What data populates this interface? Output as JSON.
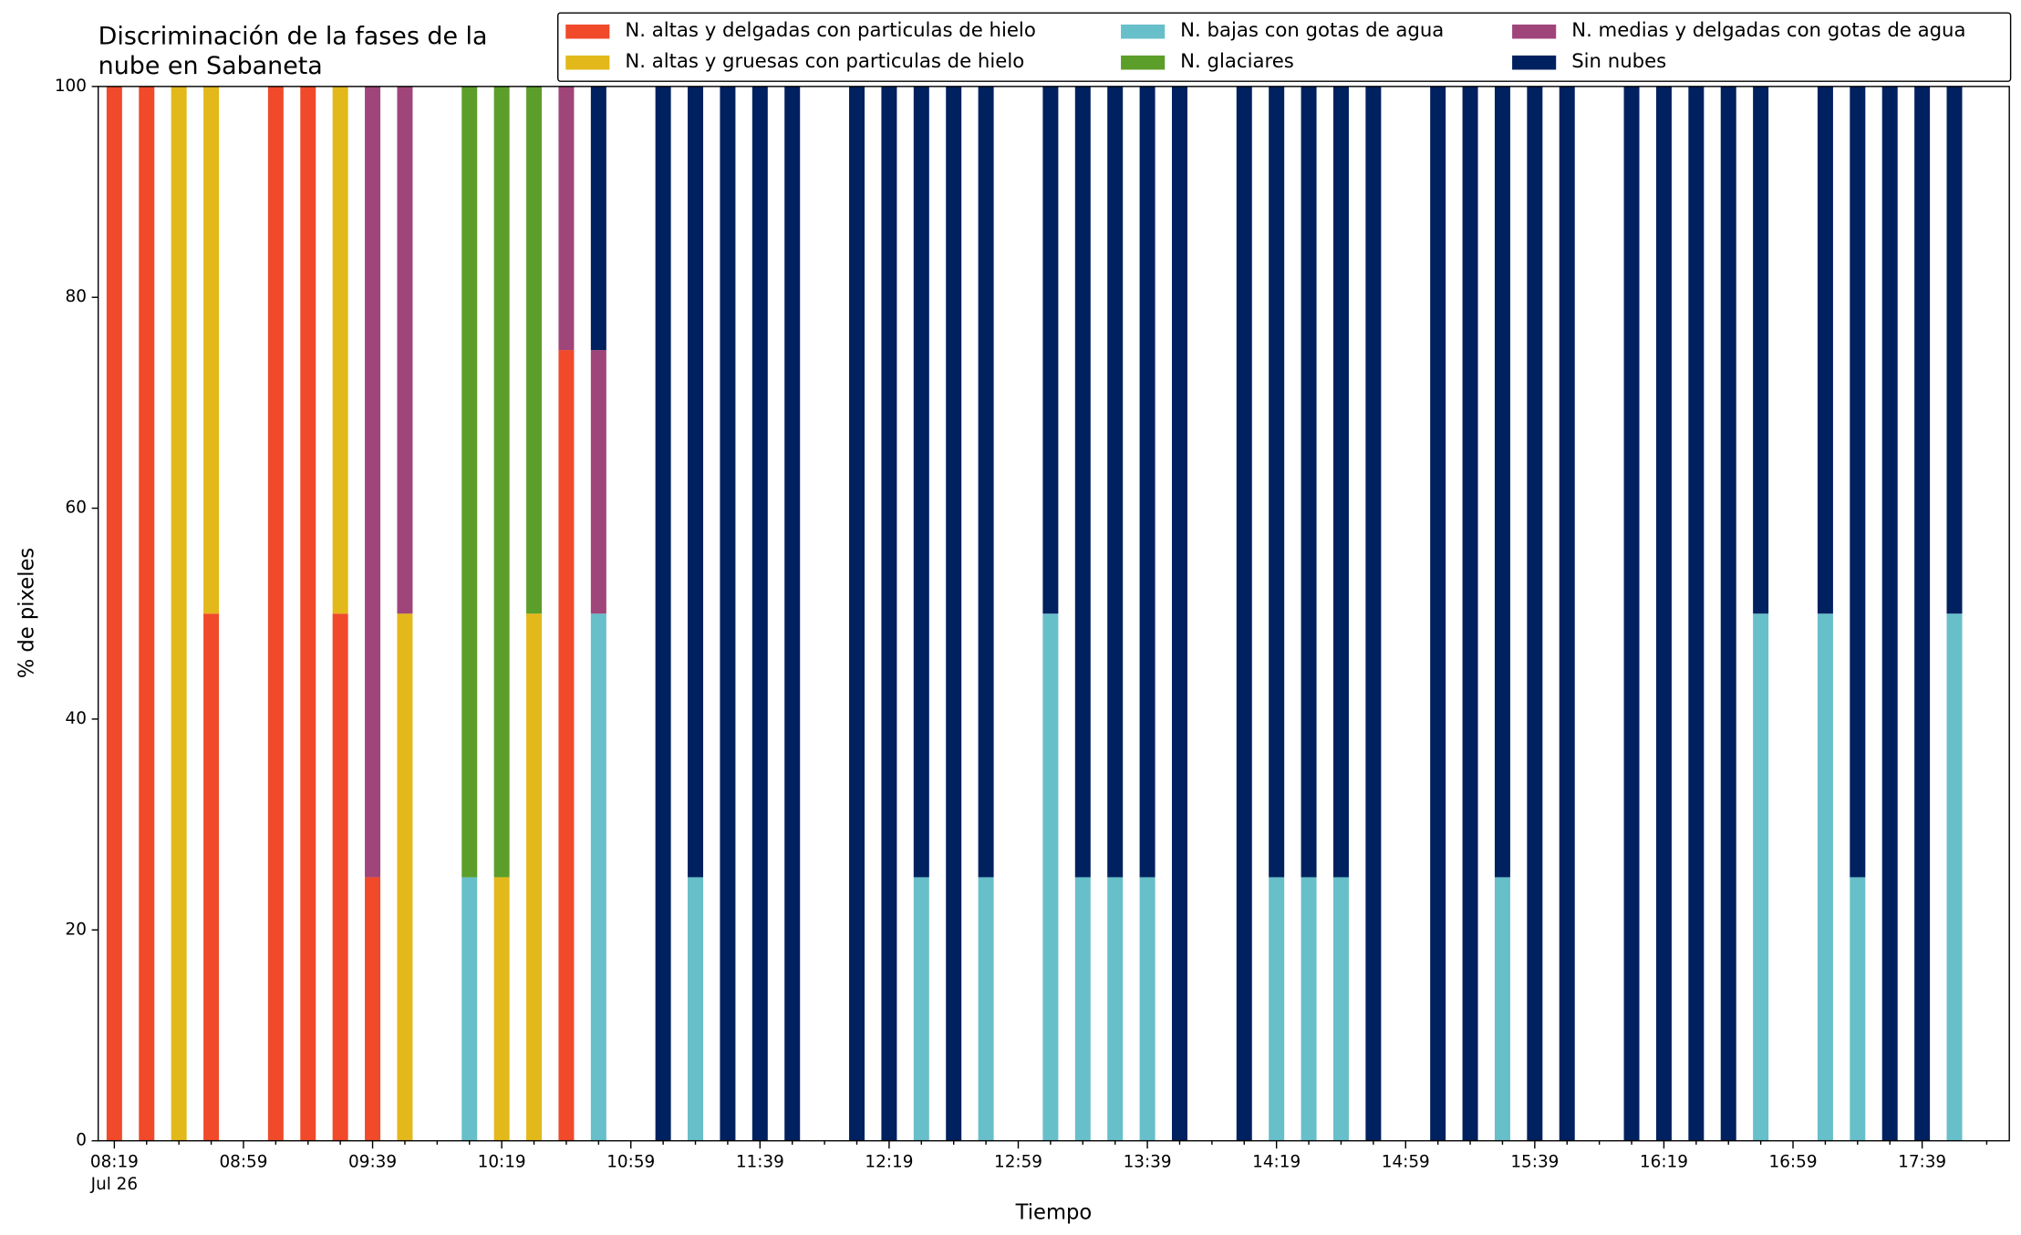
{
  "chart_data": {
    "type": "stacked_bar",
    "title": [
      "Discriminación de la fases de la",
      "nube en Sabaneta"
    ],
    "xlabel": "Tiempo",
    "ylabel": "% de pixeles",
    "x": [
      "08:19",
      "08:29",
      "08:39",
      "08:49",
      "09:09",
      "09:19",
      "09:29",
      "09:39",
      "09:49",
      "10:09",
      "10:19",
      "10:29",
      "10:39",
      "10:49",
      "11:09",
      "11:19",
      "11:29",
      "11:39",
      "11:49",
      "12:09",
      "12:19",
      "12:29",
      "12:39",
      "12:49",
      "13:09",
      "13:19",
      "13:29",
      "13:39",
      "13:49",
      "14:09",
      "14:19",
      "14:29",
      "14:39",
      "14:49",
      "15:09",
      "15:19",
      "15:29",
      "15:39",
      "15:49",
      "16:09",
      "16:19",
      "16:29",
      "16:39",
      "16:49",
      "17:09",
      "17:19",
      "17:29",
      "17:39",
      "17:49"
    ],
    "xlim": [
      "08:14",
      "18:06"
    ],
    "xticks": [
      "08:19",
      "08:59",
      "09:39",
      "10:19",
      "10:59",
      "11:39",
      "12:19",
      "12:59",
      "13:39",
      "14:19",
      "14:59",
      "15:39",
      "16:19",
      "16:59",
      "17:39"
    ],
    "xtick_sublabel": "Jul 26",
    "ylim": [
      0,
      100
    ],
    "yticks": [
      0,
      20,
      40,
      60,
      80,
      100
    ],
    "legend": "upper right",
    "legend_columns": 3,
    "series": [
      {
        "name": "N. altas y delgadas con particulas de hielo",
        "color": "#f04a2b",
        "values": [
          100,
          100,
          0,
          50,
          100,
          100,
          50,
          25,
          0,
          0,
          0,
          0,
          75,
          0,
          0,
          0,
          0,
          0,
          0,
          0,
          0,
          0,
          0,
          0,
          0,
          0,
          0,
          0,
          0,
          0,
          0,
          0,
          0,
          0,
          0,
          0,
          0,
          0,
          0,
          0,
          0,
          0,
          0,
          0,
          0,
          0,
          0,
          0,
          0
        ]
      },
      {
        "name": "N. altas y gruesas con particulas de hielo",
        "color": "#e3b81a",
        "values": [
          0,
          0,
          100,
          50,
          0,
          0,
          50,
          0,
          50,
          0,
          25,
          50,
          0,
          0,
          0,
          0,
          0,
          0,
          0,
          0,
          0,
          0,
          0,
          0,
          0,
          0,
          0,
          0,
          0,
          0,
          0,
          0,
          0,
          0,
          0,
          0,
          0,
          0,
          0,
          0,
          0,
          0,
          0,
          0,
          0,
          0,
          0,
          0,
          0
        ]
      },
      {
        "name": "N. bajas con gotas de agua",
        "color": "#67bfca",
        "values": [
          0,
          0,
          0,
          0,
          0,
          0,
          0,
          0,
          0,
          25,
          0,
          0,
          0,
          50,
          0,
          25,
          0,
          0,
          0,
          0,
          0,
          25,
          0,
          25,
          50,
          25,
          25,
          25,
          0,
          0,
          25,
          25,
          25,
          0,
          0,
          0,
          25,
          0,
          0,
          0,
          0,
          0,
          0,
          50,
          50,
          25,
          0,
          0,
          50
        ]
      },
      {
        "name": "N. glaciares",
        "color": "#5c9e2a",
        "values": [
          0,
          0,
          0,
          0,
          0,
          0,
          0,
          0,
          0,
          75,
          75,
          50,
          0,
          0,
          0,
          0,
          0,
          0,
          0,
          0,
          0,
          0,
          0,
          0,
          0,
          0,
          0,
          0,
          0,
          0,
          0,
          0,
          0,
          0,
          0,
          0,
          0,
          0,
          0,
          0,
          0,
          0,
          0,
          0,
          0,
          0,
          0,
          0,
          0
        ]
      },
      {
        "name": "N. medias y delgadas con gotas de agua",
        "color": "#a0457a",
        "values": [
          0,
          0,
          0,
          0,
          0,
          0,
          0,
          75,
          50,
          0,
          0,
          0,
          25,
          25,
          0,
          0,
          0,
          0,
          0,
          0,
          0,
          0,
          0,
          0,
          0,
          0,
          0,
          0,
          0,
          0,
          0,
          0,
          0,
          0,
          0,
          0,
          0,
          0,
          0,
          0,
          0,
          0,
          0,
          0,
          0,
          0,
          0,
          0,
          0
        ]
      },
      {
        "name": "Sin nubes",
        "color": "#00215f",
        "values": [
          0,
          0,
          0,
          0,
          0,
          0,
          0,
          0,
          0,
          0,
          0,
          0,
          0,
          25,
          100,
          75,
          100,
          100,
          100,
          100,
          100,
          75,
          100,
          75,
          50,
          75,
          75,
          75,
          100,
          100,
          75,
          75,
          75,
          100,
          100,
          100,
          75,
          100,
          100,
          100,
          100,
          100,
          100,
          50,
          50,
          75,
          100,
          100,
          50
        ]
      }
    ]
  }
}
